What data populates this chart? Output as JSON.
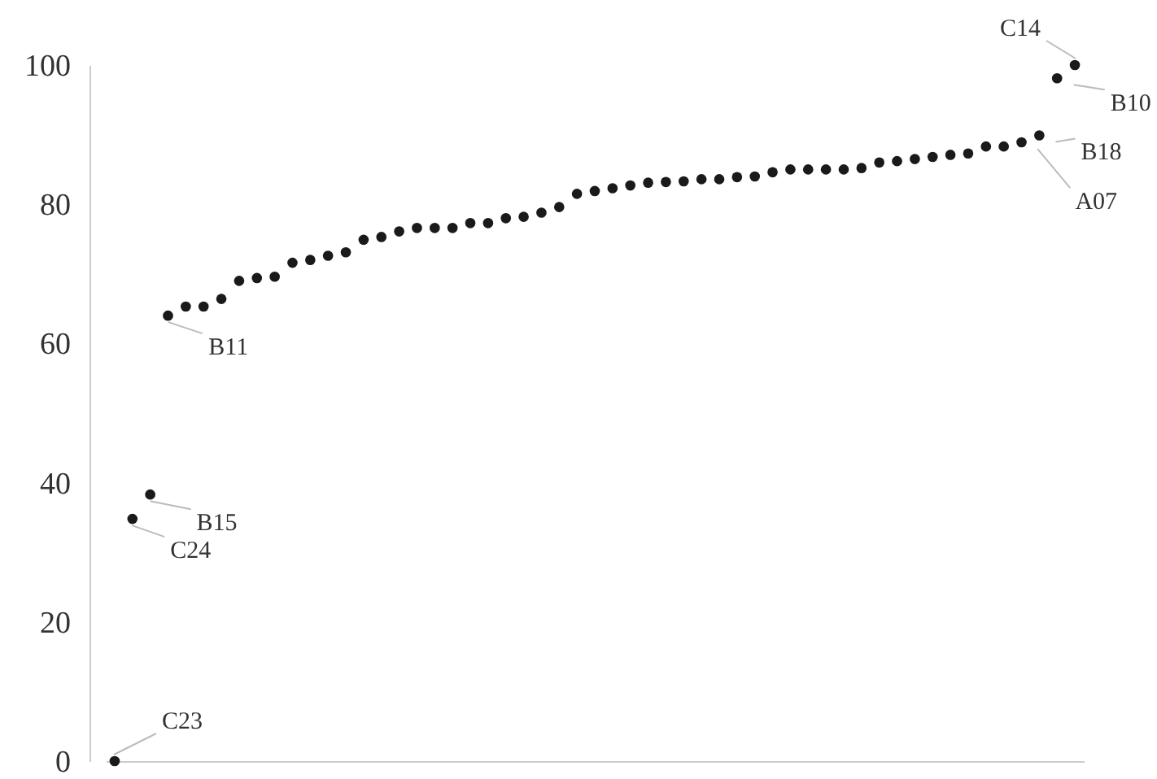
{
  "chart_data": {
    "type": "scatter",
    "categories": [
      null,
      null,
      null,
      null,
      null,
      null,
      null,
      null,
      null,
      null,
      null,
      null,
      null,
      null,
      null,
      null,
      null,
      null,
      null,
      null,
      null,
      null,
      null,
      null,
      null,
      null,
      null,
      null,
      null,
      null,
      null,
      null,
      null,
      null,
      null,
      null,
      null,
      null,
      null,
      null,
      null,
      null,
      null,
      null,
      null,
      null,
      null,
      null,
      null,
      null,
      null,
      null,
      null,
      null,
      null
    ],
    "values": [
      0,
      34.8,
      38.3,
      64.0,
      65.3,
      65.3,
      66.4,
      69.0,
      69.4,
      69.6,
      71.6,
      72.0,
      72.6,
      73.1,
      74.9,
      75.3,
      76.1,
      76.6,
      76.6,
      76.6,
      77.3,
      77.3,
      78.0,
      78.2,
      78.8,
      79.6,
      81.5,
      81.9,
      82.3,
      82.7,
      83.1,
      83.2,
      83.3,
      83.6,
      83.6,
      83.9,
      84.0,
      84.6,
      85.0,
      85.0,
      85.0,
      85.0,
      85.2,
      86.0,
      86.2,
      86.5,
      86.8,
      87.1,
      87.3,
      88.3,
      88.3,
      88.9,
      89.9,
      98.1,
      100
    ],
    "value_labels": [
      "C23",
      "C24",
      "B15",
      "B11",
      null,
      null,
      null,
      null,
      null,
      null,
      null,
      null,
      null,
      null,
      null,
      null,
      null,
      null,
      null,
      null,
      null,
      null,
      null,
      null,
      null,
      null,
      null,
      null,
      null,
      null,
      null,
      null,
      null,
      null,
      null,
      null,
      null,
      null,
      null,
      null,
      null,
      null,
      null,
      null,
      null,
      null,
      null,
      null,
      null,
      null,
      null,
      "A07",
      "B18",
      "B10",
      "C14"
    ],
    "color": "#1a1a1a",
    "marker": "circle",
    "ylim": [
      0,
      100
    ],
    "yticks": [
      0,
      20,
      40,
      60,
      80,
      100
    ],
    "grid": false,
    "tick_labels": "y"
  }
}
